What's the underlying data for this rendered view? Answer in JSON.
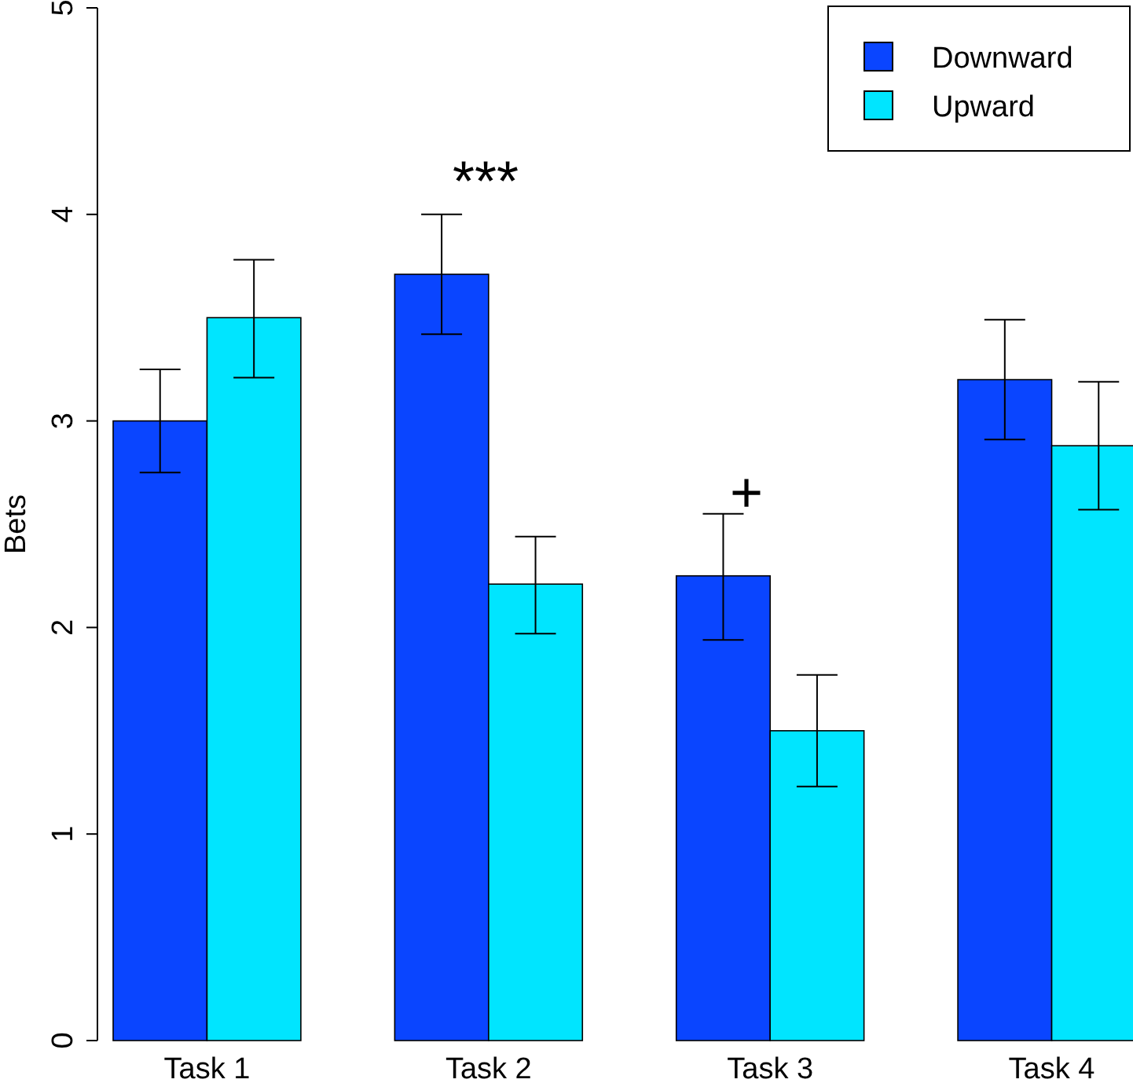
{
  "chart_data": {
    "type": "bar",
    "ylabel": "Bets",
    "categories": [
      "Task 1",
      "Task 2",
      "Task 3",
      "Task 4"
    ],
    "series": [
      {
        "name": "Downward",
        "color": "#0a45ff",
        "values": [
          3.0,
          3.71,
          2.25,
          3.2
        ],
        "errors": [
          [
            2.75,
            3.25
          ],
          [
            3.42,
            4.0
          ],
          [
            1.94,
            2.55
          ],
          [
            2.91,
            3.49
          ]
        ]
      },
      {
        "name": "Upward",
        "color": "#00e5ff",
        "values": [
          3.5,
          2.21,
          1.5,
          2.88
        ],
        "errors": [
          [
            3.21,
            3.78
          ],
          [
            1.97,
            2.44
          ],
          [
            1.23,
            1.77
          ],
          [
            2.57,
            3.19
          ]
        ]
      }
    ],
    "ylim": [
      0,
      5
    ],
    "yticks": [
      0,
      1,
      2,
      3,
      4,
      5
    ],
    "grid": false,
    "legend": "top right",
    "annotations": [
      "***",
      "+"
    ]
  }
}
